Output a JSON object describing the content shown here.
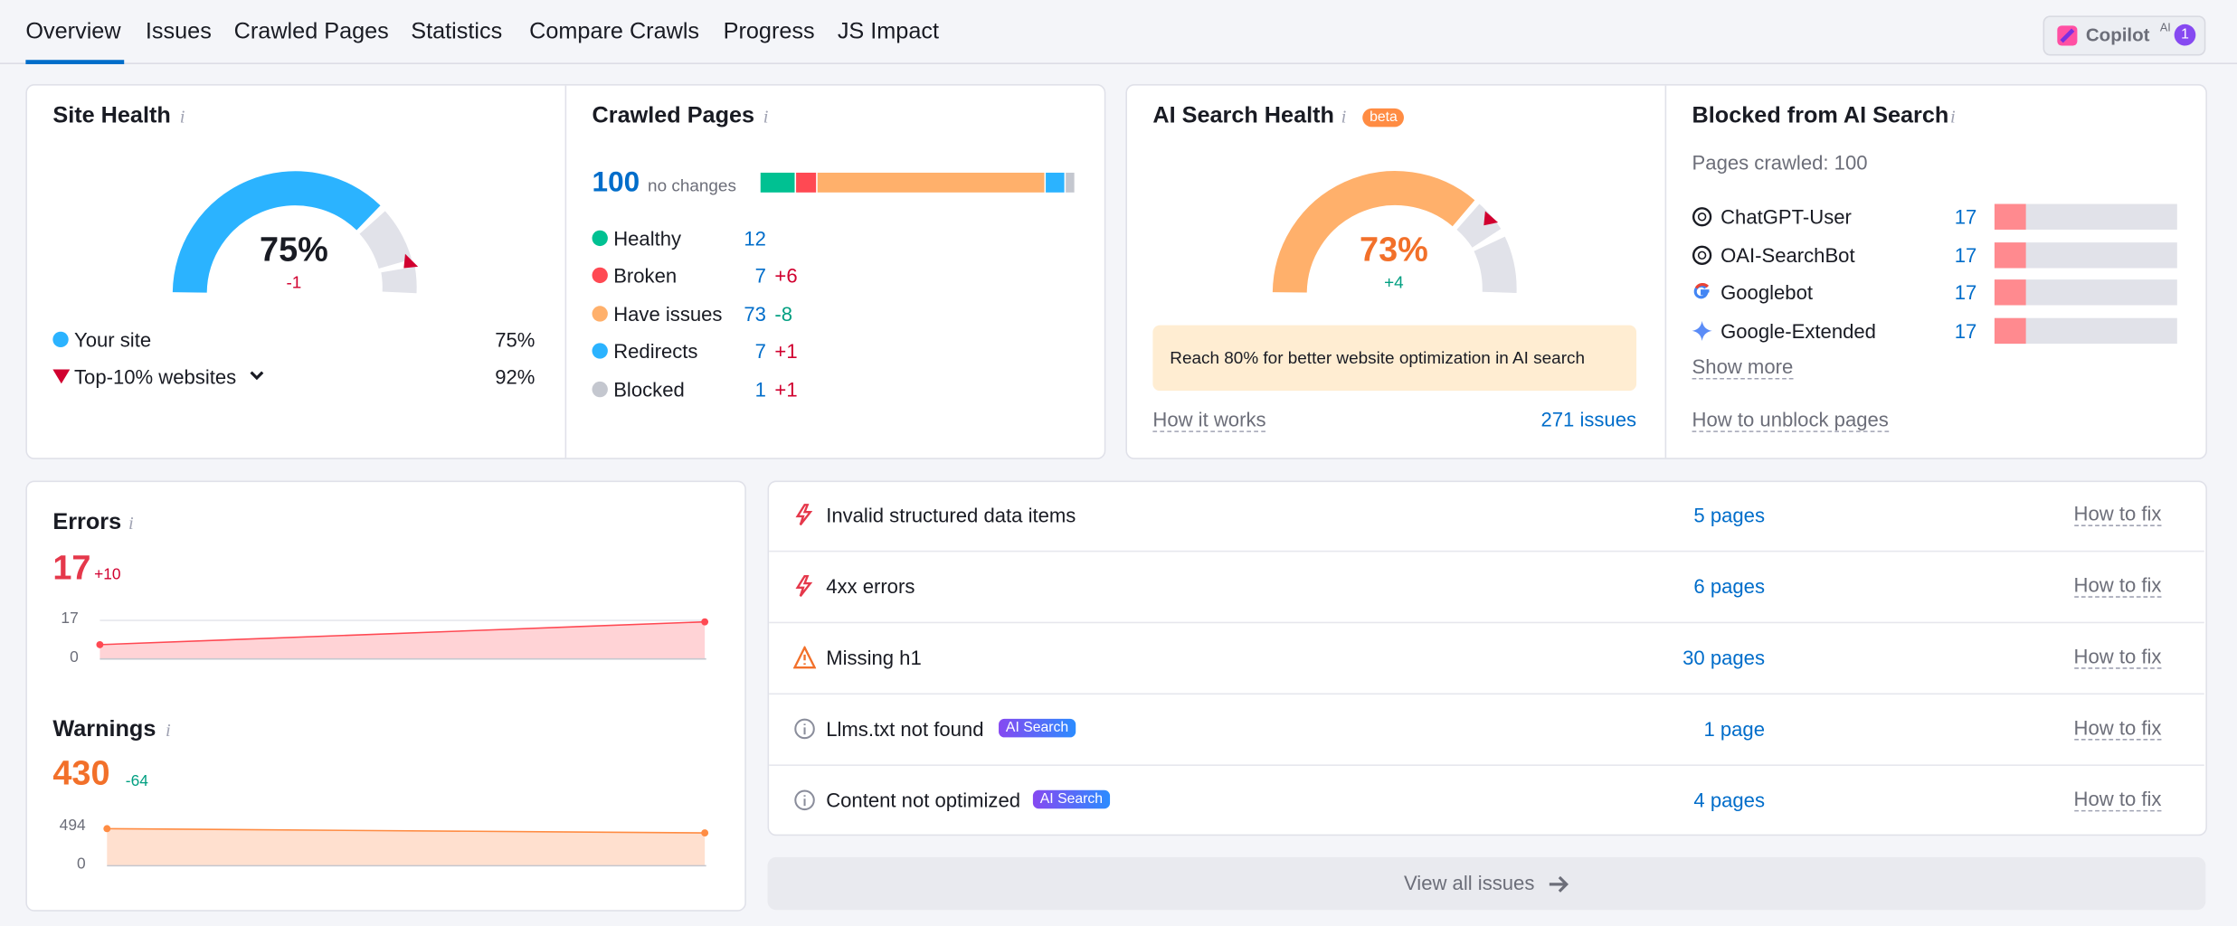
{
  "tabs": [
    "Overview",
    "Issues",
    "Crawled Pages",
    "Statistics",
    "Compare Crawls",
    "Progress",
    "JS Impact"
  ],
  "copilot": {
    "label": "Copilot",
    "sup": "AI",
    "badge": "1"
  },
  "site_health": {
    "title": "Site Health",
    "value": "75%",
    "change": "-1",
    "legend": [
      {
        "label": "Your site",
        "value": "75%"
      },
      {
        "label": "Top-10% websites",
        "value": "92%"
      }
    ]
  },
  "crawled_pages": {
    "title": "Crawled Pages",
    "total": "100",
    "note": "no changes",
    "rows": [
      {
        "label": "Healthy",
        "count": "12"
      },
      {
        "label": "Broken",
        "count": "7",
        "change": "+6"
      },
      {
        "label": "Have issues",
        "count": "73",
        "change": "-8"
      },
      {
        "label": "Redirects",
        "count": "7",
        "change": "+1"
      },
      {
        "label": "Blocked",
        "count": "1",
        "change": "+1"
      }
    ]
  },
  "ai_search_health": {
    "title": "AI Search Health",
    "badge": "beta",
    "value": "73%",
    "change": "+4",
    "notice": "Reach 80% for better website optimization in AI search",
    "link": "How it works",
    "issues": "271 issues"
  },
  "blocked": {
    "title": "Blocked from AI Search",
    "pages_crawled": "Pages crawled: 100",
    "bots": [
      {
        "name": "ChatGPT-User",
        "count": "17"
      },
      {
        "name": "OAI-SearchBot",
        "count": "17"
      },
      {
        "name": "Googlebot",
        "count": "17"
      },
      {
        "name": "Google-Extended",
        "count": "17"
      }
    ],
    "show_more": "Show more",
    "link": "How to unblock pages"
  },
  "errors": {
    "title": "Errors",
    "value": "17",
    "change": "+10",
    "yticks": [
      "17",
      "0"
    ]
  },
  "warnings": {
    "title": "Warnings",
    "value": "430",
    "change": "-64",
    "yticks": [
      "494",
      "0"
    ]
  },
  "issues": [
    {
      "label": "Invalid structured data items",
      "pages": "5 pages",
      "fix": "How to fix"
    },
    {
      "label": "4xx errors",
      "pages": "6 pages",
      "fix": "How to fix"
    },
    {
      "label": "Missing h1",
      "pages": "30 pages",
      "fix": "How to fix"
    },
    {
      "label": "Llms.txt not found",
      "tag": "AI Search",
      "pages": "1 page",
      "fix": "How to fix"
    },
    {
      "label": "Content not optimized",
      "tag": "AI Search",
      "pages": "4 pages",
      "fix": "How to fix"
    }
  ],
  "view_all": "View all issues"
}
